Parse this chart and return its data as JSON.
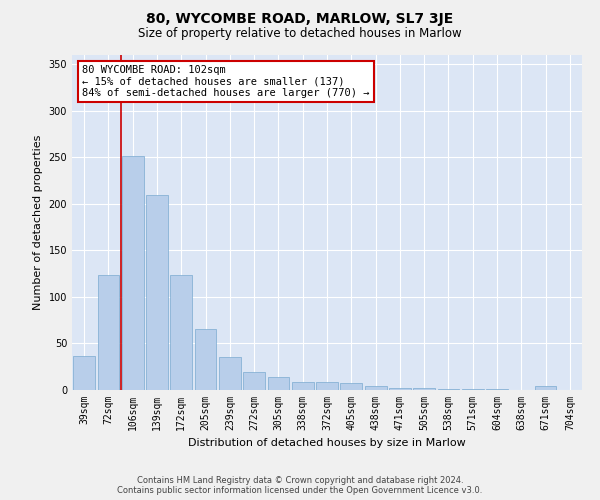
{
  "title": "80, WYCOMBE ROAD, MARLOW, SL7 3JE",
  "subtitle": "Size of property relative to detached houses in Marlow",
  "xlabel": "Distribution of detached houses by size in Marlow",
  "ylabel": "Number of detached properties",
  "bar_color": "#b8ceea",
  "bar_edge_color": "#7aaad0",
  "background_color": "#dce6f5",
  "grid_color": "#ffffff",
  "categories": [
    "39sqm",
    "72sqm",
    "106sqm",
    "139sqm",
    "172sqm",
    "205sqm",
    "239sqm",
    "272sqm",
    "305sqm",
    "338sqm",
    "372sqm",
    "405sqm",
    "438sqm",
    "471sqm",
    "505sqm",
    "538sqm",
    "571sqm",
    "604sqm",
    "638sqm",
    "671sqm",
    "704sqm"
  ],
  "values": [
    37,
    124,
    252,
    210,
    124,
    66,
    35,
    19,
    14,
    9,
    9,
    8,
    4,
    2,
    2,
    1,
    1,
    1,
    0,
    4,
    0
  ],
  "property_label": "80 WYCOMBE ROAD: 102sqm",
  "annotation_line1": "← 15% of detached houses are smaller (137)",
  "annotation_line2": "84% of semi-detached houses are larger (770) →",
  "vline_x_index": 1.5,
  "ylim": [
    0,
    360
  ],
  "yticks": [
    0,
    50,
    100,
    150,
    200,
    250,
    300,
    350
  ],
  "footer_line1": "Contains HM Land Registry data © Crown copyright and database right 2024.",
  "footer_line2": "Contains public sector information licensed under the Open Government Licence v3.0.",
  "annotation_box_facecolor": "#ffffff",
  "annotation_box_edgecolor": "#cc0000",
  "vline_color": "#cc0000",
  "fig_facecolor": "#f0f0f0",
  "title_fontsize": 10,
  "subtitle_fontsize": 8.5,
  "tick_fontsize": 7,
  "ylabel_fontsize": 8,
  "xlabel_fontsize": 8,
  "annotation_fontsize": 7.5,
  "footer_fontsize": 6
}
